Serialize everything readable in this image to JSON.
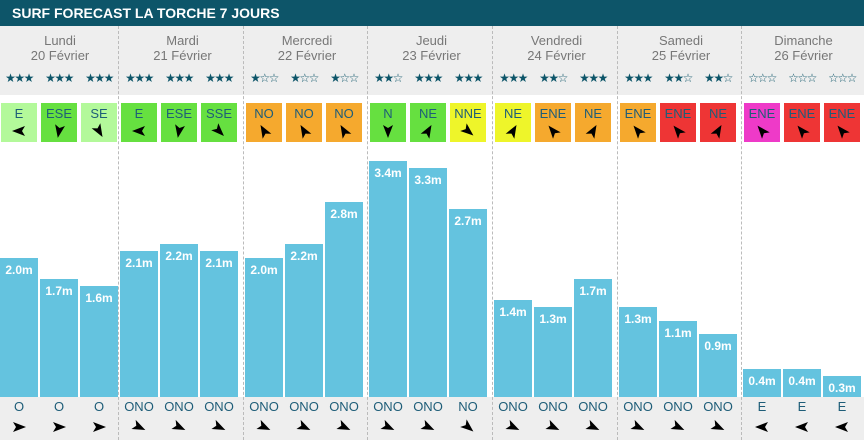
{
  "title": "SURF FORECAST LA TORCHE 7 JOURS",
  "colors": {
    "header": "#0d5569",
    "bar": "#64c3df",
    "light_green": "#b3f99a",
    "green": "#66e040",
    "orange": "#f5a92e",
    "yellow": "#eef52a",
    "red": "#ee3535",
    "magenta": "#ee3ac8"
  },
  "days": [
    {
      "name": "Lundi",
      "date": "20 Février",
      "slots": [
        {
          "stars": 3,
          "wind": "E",
          "wind_color": "light_green",
          "wind_arrow_deg": 180,
          "height": "2.0m",
          "height_m": 2.0,
          "swell": "O",
          "swell_arrow_deg": 0
        },
        {
          "stars": 3,
          "wind": "ESE",
          "wind_color": "green",
          "wind_arrow_deg": 100,
          "height": "1.7m",
          "height_m": 1.7,
          "swell": "O",
          "swell_arrow_deg": 0
        },
        {
          "stars": 3,
          "wind": "SE",
          "wind_color": "light_green",
          "wind_arrow_deg": 60,
          "height": "1.6m",
          "height_m": 1.6,
          "swell": "O",
          "swell_arrow_deg": 0
        }
      ]
    },
    {
      "name": "Mardi",
      "date": "21 Février",
      "slots": [
        {
          "stars": 3,
          "wind": "E",
          "wind_color": "green",
          "wind_arrow_deg": 180,
          "height": "2.1m",
          "height_m": 2.1,
          "swell": "ONO",
          "swell_arrow_deg": 25
        },
        {
          "stars": 3,
          "wind": "ESE",
          "wind_color": "green",
          "wind_arrow_deg": 100,
          "height": "2.2m",
          "height_m": 2.2,
          "swell": "ONO",
          "swell_arrow_deg": 25
        },
        {
          "stars": 3,
          "wind": "SSE",
          "wind_color": "green",
          "wind_arrow_deg": 45,
          "height": "2.1m",
          "height_m": 2.1,
          "swell": "ONO",
          "swell_arrow_deg": 25
        }
      ]
    },
    {
      "name": "Mercredi",
      "date": "22 Février",
      "slots": [
        {
          "stars": 1,
          "wind": "NO",
          "wind_color": "orange",
          "wind_arrow_deg": -120,
          "height": "2.0m",
          "height_m": 2.0,
          "swell": "ONO",
          "swell_arrow_deg": 25
        },
        {
          "stars": 1,
          "wind": "NO",
          "wind_color": "orange",
          "wind_arrow_deg": -120,
          "height": "2.2m",
          "height_m": 2.2,
          "swell": "ONO",
          "swell_arrow_deg": 25
        },
        {
          "stars": 1,
          "wind": "NO",
          "wind_color": "orange",
          "wind_arrow_deg": -120,
          "height": "2.8m",
          "height_m": 2.8,
          "swell": "ONO",
          "swell_arrow_deg": 25
        }
      ]
    },
    {
      "name": "Jeudi",
      "date": "23 Février",
      "slots": [
        {
          "stars": 2,
          "wind": "N",
          "wind_color": "green",
          "wind_arrow_deg": 90,
          "height": "3.4m",
          "height_m": 3.4,
          "swell": "ONO",
          "swell_arrow_deg": 25
        },
        {
          "stars": 3,
          "wind": "NE",
          "wind_color": "green",
          "wind_arrow_deg": -60,
          "height": "3.3m",
          "height_m": 3.3,
          "swell": "ONO",
          "swell_arrow_deg": 25
        },
        {
          "stars": 3,
          "wind": "NNE",
          "wind_color": "yellow",
          "wind_arrow_deg": 40,
          "height": "2.7m",
          "height_m": 2.7,
          "swell": "NO",
          "swell_arrow_deg": 40
        }
      ]
    },
    {
      "name": "Vendredi",
      "date": "24 Février",
      "slots": [
        {
          "stars": 3,
          "wind": "NE",
          "wind_color": "yellow",
          "wind_arrow_deg": -60,
          "height": "1.4m",
          "height_m": 1.4,
          "swell": "ONO",
          "swell_arrow_deg": 25
        },
        {
          "stars": 2,
          "wind": "ENE",
          "wind_color": "orange",
          "wind_arrow_deg": -130,
          "height": "1.3m",
          "height_m": 1.3,
          "swell": "ONO",
          "swell_arrow_deg": 25
        },
        {
          "stars": 3,
          "wind": "NE",
          "wind_color": "orange",
          "wind_arrow_deg": -60,
          "height": "1.7m",
          "height_m": 1.7,
          "swell": "ONO",
          "swell_arrow_deg": 25
        }
      ]
    },
    {
      "name": "Samedi",
      "date": "25 Février",
      "slots": [
        {
          "stars": 3,
          "wind": "ENE",
          "wind_color": "orange",
          "wind_arrow_deg": -130,
          "height": "1.3m",
          "height_m": 1.3,
          "swell": "ONO",
          "swell_arrow_deg": 25
        },
        {
          "stars": 2,
          "wind": "ENE",
          "wind_color": "red",
          "wind_arrow_deg": -130,
          "height": "1.1m",
          "height_m": 1.1,
          "swell": "ONO",
          "swell_arrow_deg": 25
        },
        {
          "stars": 2,
          "wind": "NE",
          "wind_color": "red",
          "wind_arrow_deg": -60,
          "height": "0.9m",
          "height_m": 0.9,
          "swell": "ONO",
          "swell_arrow_deg": 25
        }
      ]
    },
    {
      "name": "Dimanche",
      "date": "26 Février",
      "slots": [
        {
          "stars": 0,
          "wind": "ENE",
          "wind_color": "magenta",
          "wind_arrow_deg": -130,
          "height": "0.4m",
          "height_m": 0.4,
          "swell": "E",
          "swell_arrow_deg": 180
        },
        {
          "stars": 0,
          "wind": "ENE",
          "wind_color": "red",
          "wind_arrow_deg": -130,
          "height": "0.4m",
          "height_m": 0.4,
          "swell": "E",
          "swell_arrow_deg": 180
        },
        {
          "stars": 0,
          "wind": "ENE",
          "wind_color": "red",
          "wind_arrow_deg": -130,
          "height": "0.3m",
          "height_m": 0.3,
          "swell": "E",
          "swell_arrow_deg": 180
        }
      ]
    }
  ]
}
